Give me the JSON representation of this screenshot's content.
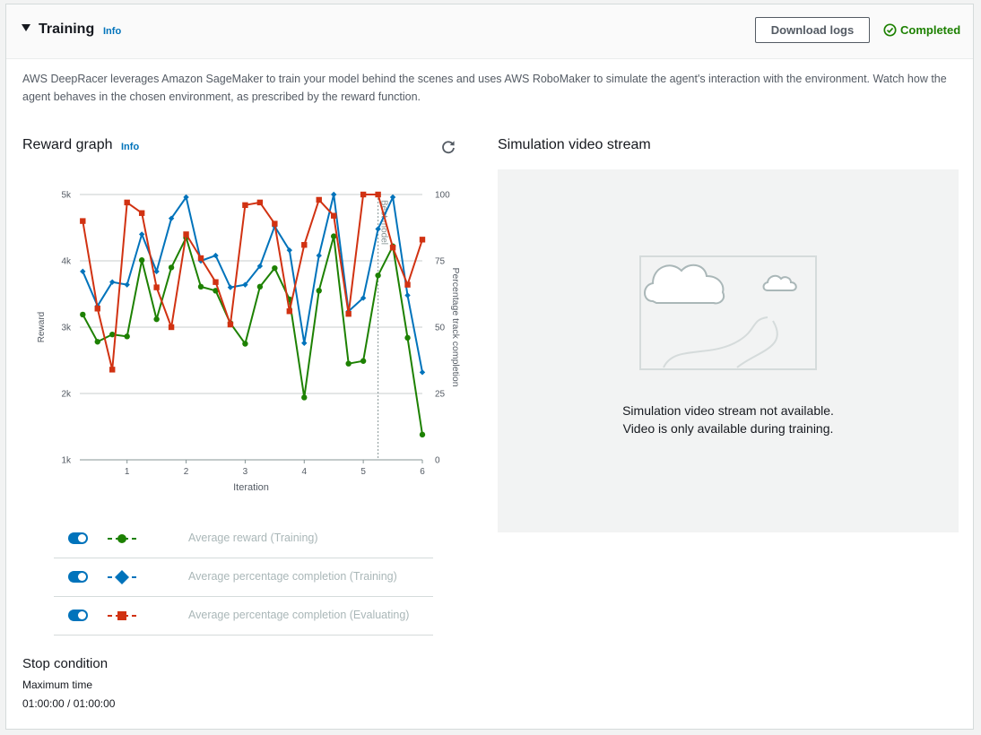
{
  "header": {
    "title": "Training",
    "info": "Info",
    "download_label": "Download logs",
    "status": "Completed"
  },
  "description": "AWS DeepRacer leverages Amazon SageMaker to train your model behind the scenes and uses AWS RoboMaker to simulate the agent's interaction with the environment. Watch how the agent behaves in the chosen environment, as prescribed by the reward function.",
  "reward_graph": {
    "title": "Reward graph",
    "info": "Info"
  },
  "chart_data": {
    "type": "line",
    "xlabel": "Iteration",
    "ylabel": "Reward",
    "y2label": "Percentage track completion",
    "xlim": [
      0.2,
      6.0
    ],
    "ylim": [
      1000,
      5000
    ],
    "y2lim": [
      0,
      100
    ],
    "xticks": [
      "1",
      "2",
      "3",
      "4",
      "5",
      "6"
    ],
    "yticks": [
      "1k",
      "2k",
      "3k",
      "4k",
      "5k"
    ],
    "y2ticks": [
      "0",
      "25",
      "50",
      "75",
      "100"
    ],
    "grid": true,
    "marker_line": {
      "x": 5.25,
      "label": "Best model"
    },
    "series": [
      {
        "name": "Average reward (Training)",
        "axis": "left",
        "color": "#1d8102",
        "marker": "circle",
        "x": [
          0.25,
          0.5,
          0.75,
          1.0,
          1.25,
          1.5,
          1.75,
          2.0,
          2.25,
          2.5,
          2.75,
          3.0,
          3.25,
          3.5,
          3.75,
          4.0,
          4.25,
          4.5,
          4.75,
          5.0,
          5.25,
          5.5,
          5.75,
          6.0
        ],
        "y": [
          3190,
          2780,
          2890,
          2860,
          4010,
          3120,
          3900,
          4350,
          3610,
          3550,
          3060,
          2750,
          3610,
          3890,
          3420,
          1940,
          3550,
          4370,
          2450,
          2490,
          3780,
          4220,
          2840,
          1380
        ]
      },
      {
        "name": "Average percentage completion (Training)",
        "axis": "right",
        "color": "#0073bb",
        "marker": "diamond",
        "x": [
          0.25,
          0.5,
          0.75,
          1.0,
          1.25,
          1.5,
          1.75,
          2.0,
          2.25,
          2.5,
          2.75,
          3.0,
          3.25,
          3.5,
          3.75,
          4.0,
          4.25,
          4.5,
          4.75,
          5.0,
          5.25,
          5.5,
          5.75,
          6.0
        ],
        "y": [
          71,
          58,
          67,
          66,
          85,
          71,
          91,
          99,
          75,
          77,
          65,
          66,
          73,
          88,
          79,
          44,
          77,
          100,
          56,
          61,
          87,
          99,
          62,
          33
        ]
      },
      {
        "name": "Average percentage completion (Evaluating)",
        "axis": "right",
        "color": "#d13212",
        "marker": "square",
        "x": [
          0.25,
          0.5,
          0.75,
          1.0,
          1.25,
          1.5,
          1.75,
          2.0,
          2.25,
          2.5,
          2.75,
          3.0,
          3.25,
          3.5,
          3.75,
          4.0,
          4.25,
          4.5,
          4.75,
          5.0,
          5.25,
          5.5,
          5.75,
          6.0
        ],
        "y": [
          90,
          57,
          34,
          97,
          93,
          65,
          50,
          85,
          76,
          67,
          51,
          96,
          97,
          89,
          56,
          81,
          98,
          92,
          55,
          100,
          100,
          80,
          66,
          83
        ]
      }
    ]
  },
  "legend": [
    {
      "label": "Average reward (Training)",
      "color": "#1d8102",
      "marker": "circle"
    },
    {
      "label": "Average percentage completion (Training)",
      "color": "#0073bb",
      "marker": "diamond"
    },
    {
      "label": "Average percentage completion (Evaluating)",
      "color": "#d13212",
      "marker": "square"
    }
  ],
  "video": {
    "title": "Simulation video stream",
    "message_line1": "Simulation video stream not available.",
    "message_line2": "Video is only available during training."
  },
  "stop_condition": {
    "title": "Stop condition",
    "label": "Maximum time",
    "value": "01:00:00 / 01:00:00"
  }
}
